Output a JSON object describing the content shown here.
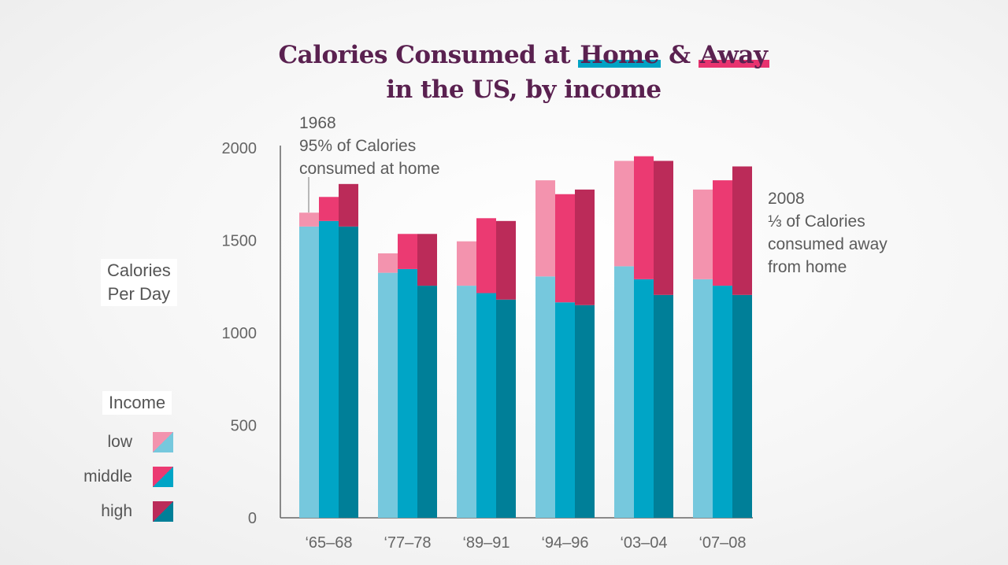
{
  "title": {
    "line1_before": "Calories Consumed at ",
    "home": "Home",
    "amp": " & ",
    "away": "Away",
    "line2": "in the US, by income"
  },
  "y_axis_label_line1": "Calories",
  "y_axis_label_line2": "Per Day",
  "legend": {
    "title": "Income",
    "items": [
      {
        "label": "low",
        "away_color": "#f393ae",
        "home_color": "#76c8dd"
      },
      {
        "label": "middle",
        "away_color": "#eb3a72",
        "home_color": "#00a5c6"
      },
      {
        "label": "high",
        "away_color": "#bb2b59",
        "home_color": "#007f98"
      }
    ]
  },
  "annotations": {
    "a1968": {
      "line1": "1968",
      "line2": "95% of Calories",
      "line3": "consumed at home"
    },
    "a2008": {
      "line1": "2008",
      "line2": "⅓ of Calories",
      "line3": "consumed away",
      "line4": "from home"
    }
  },
  "chart_data": {
    "type": "bar",
    "stacked": true,
    "categories": [
      "‘65–68",
      "‘77–78",
      "‘89–91",
      "‘94–96",
      "‘03–04",
      "‘07–08"
    ],
    "ylim": [
      0,
      2000
    ],
    "yticks": [
      0,
      500,
      1000,
      1500,
      2000
    ],
    "ylabel": "Calories Per Day",
    "groups": [
      "low",
      "middle",
      "high"
    ],
    "stack_parts": [
      "Home",
      "Away"
    ],
    "series": [
      {
        "name": "low",
        "home": [
          1575,
          1325,
          1255,
          1305,
          1360,
          1290
        ],
        "total": [
          1650,
          1430,
          1495,
          1825,
          1930,
          1775
        ]
      },
      {
        "name": "middle",
        "home": [
          1605,
          1345,
          1215,
          1165,
          1290,
          1255
        ],
        "total": [
          1735,
          1535,
          1620,
          1750,
          1955,
          1825
        ]
      },
      {
        "name": "high",
        "home": [
          1575,
          1255,
          1180,
          1150,
          1205,
          1205
        ],
        "total": [
          1805,
          1535,
          1605,
          1775,
          1930,
          1900
        ]
      }
    ]
  }
}
